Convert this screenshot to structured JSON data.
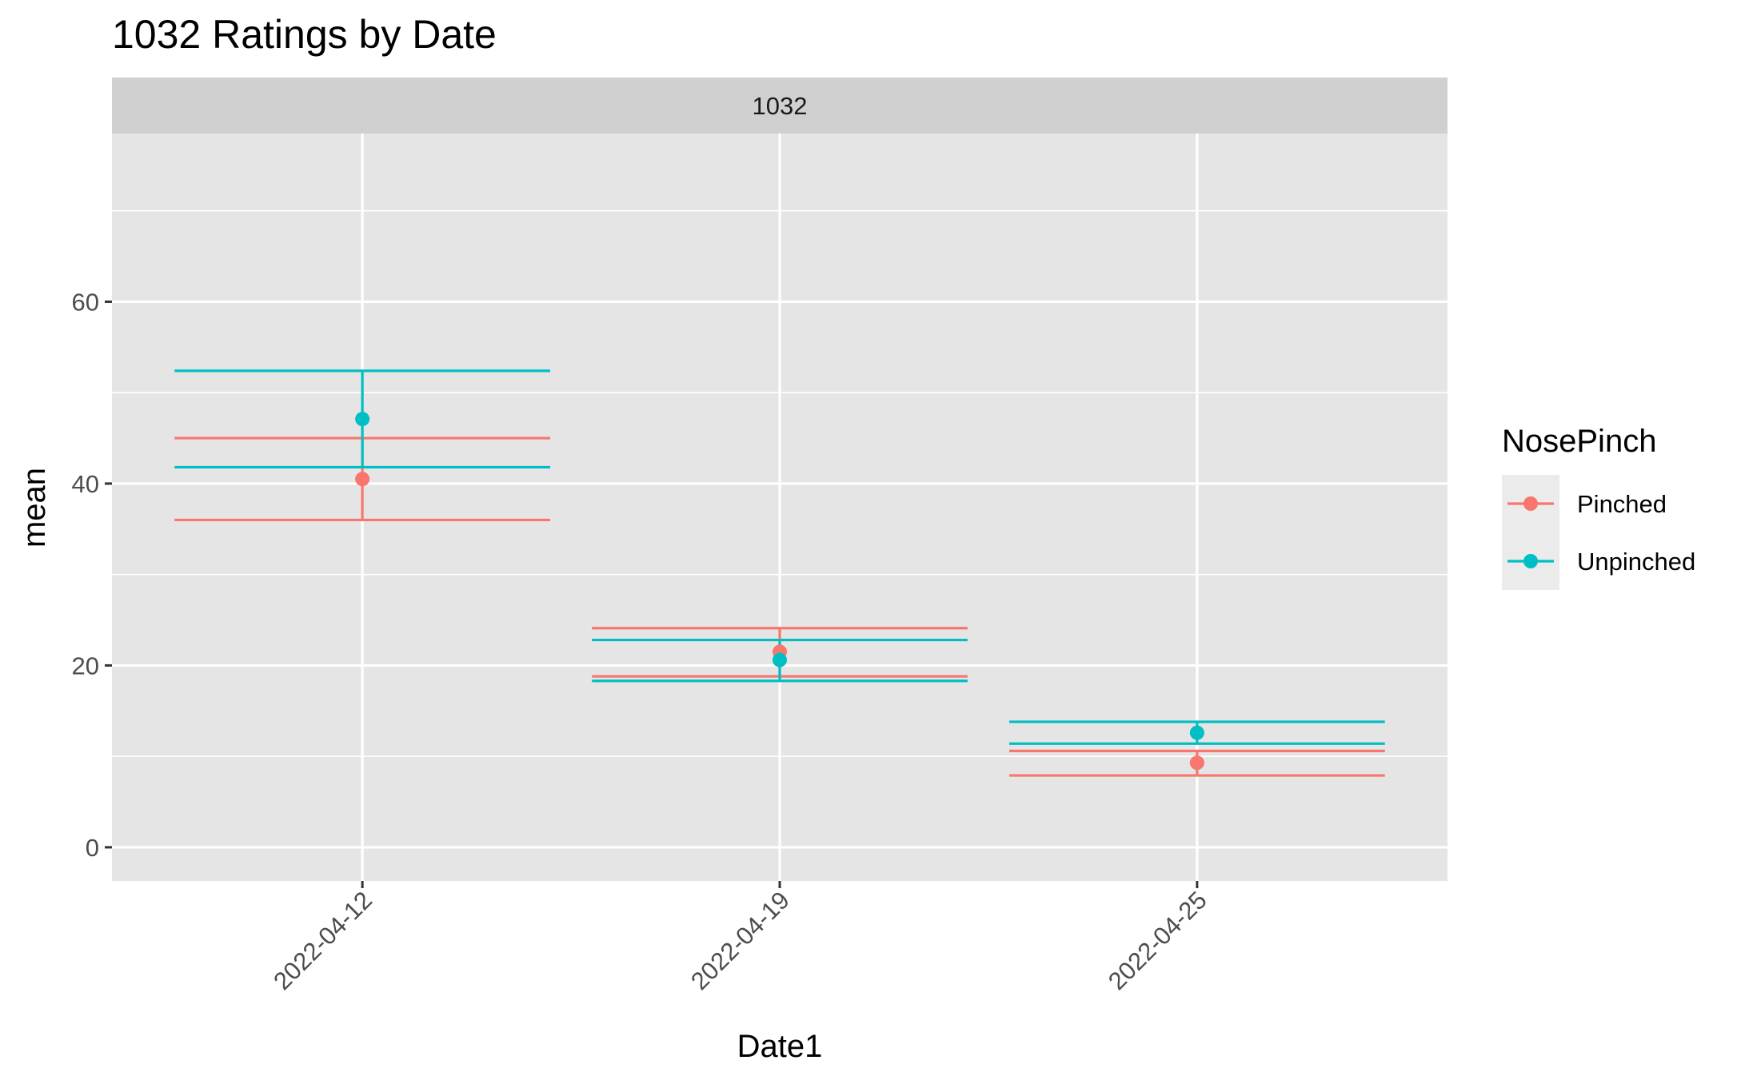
{
  "chart_data": {
    "type": "errorbar",
    "title": "1032 Ratings by Date",
    "facet_label": "1032",
    "xlabel": "Date1",
    "ylabel": "mean",
    "categories": [
      "2022-04-12",
      "2022-04-19",
      "2022-04-25"
    ],
    "y_ticks": [
      0,
      20,
      40,
      60
    ],
    "ylim": [
      -3.7,
      78.5
    ],
    "grid": true,
    "legend": {
      "title": "NosePinch",
      "placement": "right",
      "entries": [
        "Pinched",
        "Unpinched"
      ]
    },
    "series": [
      {
        "name": "Pinched",
        "color": "#F8766D",
        "values": [
          40.5,
          21.5,
          9.3
        ],
        "lower": [
          36.0,
          18.8,
          7.9
        ],
        "upper": [
          45.0,
          24.1,
          10.6
        ]
      },
      {
        "name": "Unpinched",
        "color": "#00BFC4",
        "values": [
          47.1,
          20.6,
          12.6
        ],
        "lower": [
          41.8,
          18.3,
          11.4
        ],
        "upper": [
          52.4,
          22.8,
          13.8
        ]
      }
    ]
  },
  "colors": {
    "panel_bg": "#E5E5E5",
    "strip_bg": "#D0D0D0",
    "grid": "#FFFFFF",
    "legend_key_bg": "#EBEBEB"
  }
}
